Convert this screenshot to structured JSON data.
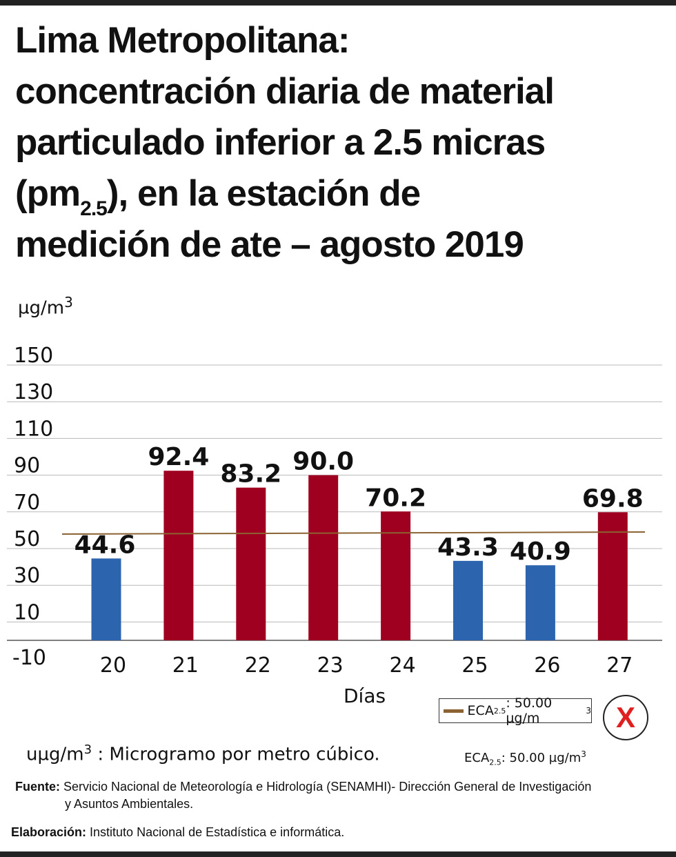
{
  "title": {
    "line1": "Lima Metropolitana:",
    "line2": "concentración diaria de material",
    "line3": "particulado inferior a 2.5 micras",
    "line4_a": "(pm",
    "line4_sub": "2.5",
    "line4_b": "), en la estación de",
    "line5": "medición de ate – agosto 2019"
  },
  "chart_data": {
    "type": "bar",
    "categories": [
      "20",
      "21",
      "22",
      "23",
      "24",
      "25",
      "26",
      "27"
    ],
    "values": [
      44.6,
      92.4,
      83.2,
      90.0,
      70.2,
      43.3,
      40.9,
      69.8
    ],
    "data_labels": [
      "44.6",
      "92.4",
      "83.2",
      "90.0",
      "70.2",
      "43.3",
      "40.9",
      "69.8"
    ],
    "bar_colors": [
      "#2d64ae",
      "#a0001f",
      "#a0001f",
      "#a0001f",
      "#a0001f",
      "#2d64ae",
      "#2d64ae",
      "#a0001f"
    ],
    "threshold": {
      "value": 50.0,
      "color": "#8b6232"
    },
    "ytick_labels": [
      "150",
      "130",
      "110",
      "90",
      "70",
      "50",
      "30",
      "10",
      "-10"
    ],
    "ylabel": "µg/m",
    "ylabel_sup": "3",
    "xlabel": "Días",
    "grid": true,
    "legend_placement": "bottom-right"
  },
  "legend": {
    "label": "ECA",
    "sub": "2.5",
    "value": ": 50.00 µg/m",
    "sup": "3"
  },
  "status_mark": "X",
  "note": {
    "text_a": "uµg/m",
    "sup": "3",
    "text_b": " : Microgramo por metro cúbico."
  },
  "eca_note": {
    "label": "ECA",
    "sub": "2.5",
    "value": ": 50.00 µg/m",
    "sup": "3"
  },
  "source": {
    "label": "Fuente:",
    "text1": " Servicio Nacional de Meteorología e Hidrología (SENAMHI)- Dirección General de  Investigación",
    "text2": "y Asuntos Ambientales."
  },
  "credit": {
    "label": "Elaboración:",
    "text": " Instituto Nacional de Estadística e informática."
  }
}
